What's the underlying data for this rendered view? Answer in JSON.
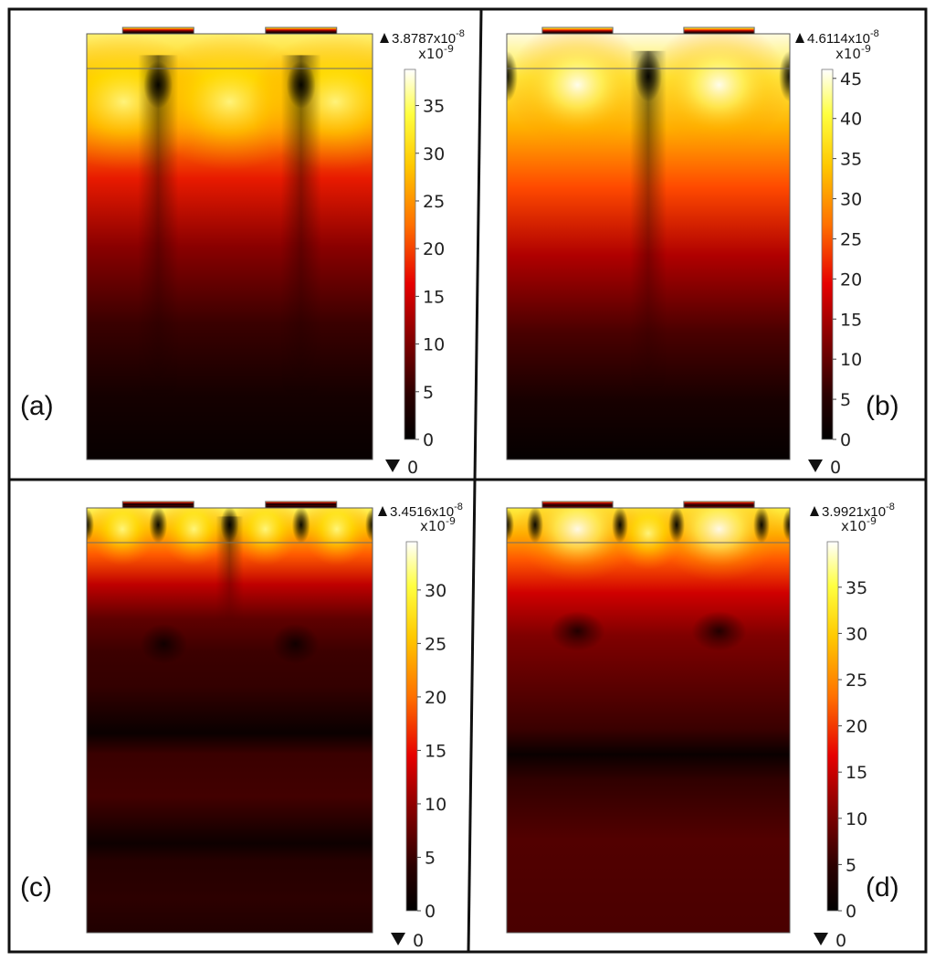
{
  "chart_data": [
    {
      "type": "heatmap",
      "panel_label": "(a)",
      "max_label": "3.8787x10",
      "max_exp": "-8",
      "min_label": "0",
      "multiplier": "x10",
      "multiplier_exp": "-9",
      "colorbar_range": [
        0,
        38.787
      ],
      "colorbar_ticks": [
        0,
        5,
        10,
        15,
        20,
        25,
        30,
        35
      ],
      "colormap": "heat",
      "pattern": "a"
    },
    {
      "type": "heatmap",
      "panel_label": "(b)",
      "max_label": "4.6114x10",
      "max_exp": "-8",
      "min_label": "0",
      "multiplier": "x10",
      "multiplier_exp": "-9",
      "colorbar_range": [
        0,
        46.114
      ],
      "colorbar_ticks": [
        0,
        5,
        10,
        15,
        20,
        25,
        30,
        35,
        40,
        45
      ],
      "colormap": "heat",
      "pattern": "b"
    },
    {
      "type": "heatmap",
      "panel_label": "(c)",
      "max_label": "3.4516x10",
      "max_exp": "-8",
      "min_label": "0",
      "multiplier": "x10",
      "multiplier_exp": "-9",
      "colorbar_range": [
        0,
        34.516
      ],
      "colorbar_ticks": [
        0,
        5,
        10,
        15,
        20,
        25,
        30
      ],
      "colormap": "heat",
      "pattern": "c"
    },
    {
      "type": "heatmap",
      "panel_label": "(d)",
      "max_label": "3.9921x10",
      "max_exp": "-8",
      "min_label": "0",
      "multiplier": "x10",
      "multiplier_exp": "-9",
      "colorbar_range": [
        0,
        39.921
      ],
      "colorbar_ticks": [
        0,
        5,
        10,
        15,
        20,
        25,
        30,
        35
      ],
      "colormap": "heat",
      "pattern": "d"
    }
  ],
  "colors": {
    "border": "#111111",
    "heat_dark": "#000000",
    "heat_red": "#d40000",
    "heat_orange": "#ff7a00",
    "heat_yellow": "#ffff20",
    "heat_white": "#ffffff"
  }
}
